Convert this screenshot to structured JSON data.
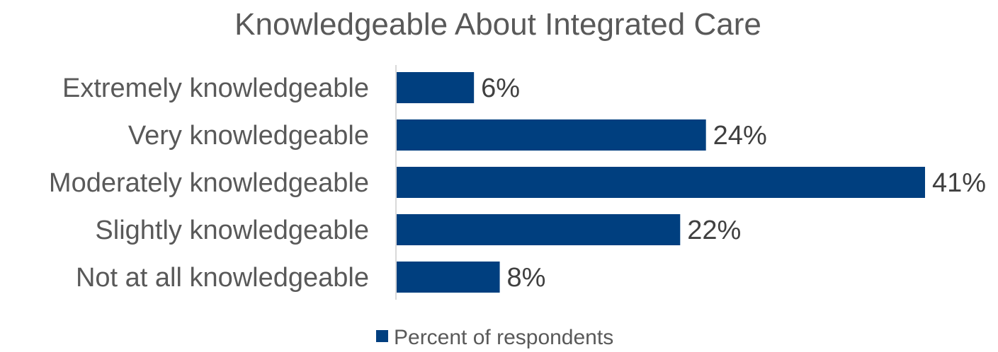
{
  "chart_data": {
    "type": "bar",
    "orientation": "horizontal",
    "title": "Knowledgeable About Integrated Care",
    "categories": [
      "Extremely knowledgeable",
      "Very knowledgeable",
      "Moderately knowledgeable",
      "Slightly knowledgeable",
      "Not at all knowledgeable"
    ],
    "series": [
      {
        "name": "Percent of respondents",
        "values": [
          6,
          24,
          41,
          22,
          8
        ],
        "labels": [
          "6%",
          "24%",
          "41%",
          "22%",
          "8%"
        ],
        "color": "#003f7f"
      }
    ],
    "xlim": [
      0,
      41
    ],
    "grid": false,
    "legend": "bottom"
  }
}
